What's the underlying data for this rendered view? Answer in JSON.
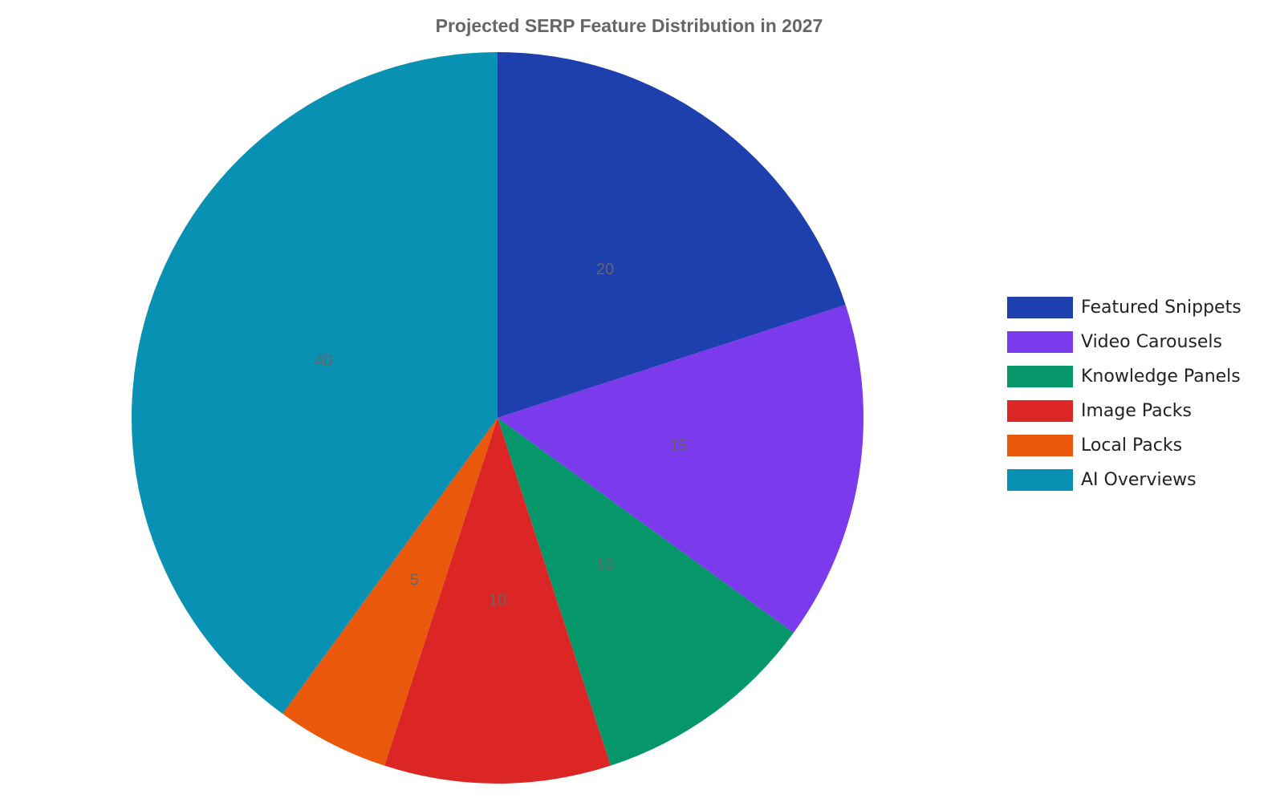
{
  "chart_data": {
    "type": "pie",
    "title": "Projected SERP Feature Distribution in 2027",
    "categories": [
      "Featured Snippets",
      "Video Carousels",
      "Knowledge Panels",
      "Image Packs",
      "Local Packs",
      "AI Overviews"
    ],
    "values": [
      20,
      15,
      10,
      10,
      5,
      40
    ],
    "colors": [
      "#1e40af",
      "#7c3aed",
      "#059669",
      "#dc2626",
      "#ea580c",
      "#0891b2"
    ],
    "legend": "right"
  }
}
